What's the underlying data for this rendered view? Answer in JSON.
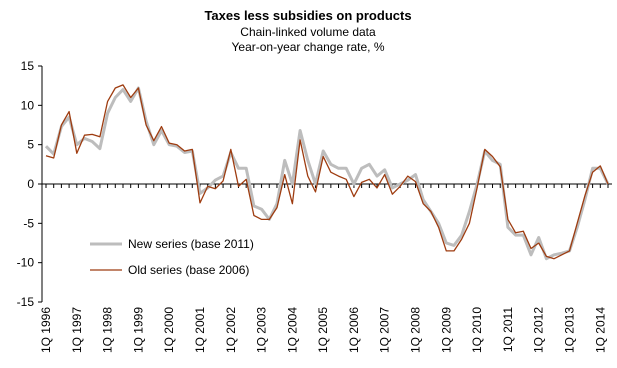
{
  "chart_data": {
    "type": "line",
    "title": "Taxes less subsidies on products",
    "subtitle_lines": [
      "Chain-linked volume data",
      "Year-on-year change rate, %"
    ],
    "ylim": [
      -15,
      15
    ],
    "y_ticks": [
      15,
      10,
      5,
      0,
      -5,
      -10,
      -15
    ],
    "x_tick_labels": [
      "1Q 1996",
      "1Q 1997",
      "1Q 1998",
      "1Q 1999",
      "1Q 2000",
      "1Q 2001",
      "1Q 2002",
      "1Q 2003",
      "1Q 2004",
      "1Q 2005",
      "1Q 2006",
      "1Q 2007",
      "1Q 2008",
      "1Q 2009",
      "1Q 2010",
      "1Q 2011",
      "1Q 2012",
      "1Q 2013",
      "1Q 2014"
    ],
    "grid": false,
    "legend_position": "lower-left",
    "series": [
      {
        "name": "New series (base 2011)",
        "color": "#bdbdbd",
        "values": [
          4.8,
          3.8,
          7.3,
          8.5,
          5.0,
          5.8,
          5.4,
          4.5,
          9.0,
          11.0,
          12.0,
          10.5,
          12.2,
          8.0,
          5.0,
          6.8,
          5.0,
          4.8,
          4.0,
          4.2,
          -1.2,
          -0.5,
          0.5,
          1.0,
          4.0,
          2.0,
          2.0,
          -2.8,
          -3.2,
          -4.5,
          -2.5,
          3.0,
          0.0,
          6.8,
          3.0,
          0.0,
          4.2,
          2.5,
          2.0,
          2.0,
          0.0,
          2.0,
          2.5,
          1.0,
          1.8,
          -0.5,
          0.0,
          0.5,
          1.2,
          -2.0,
          -3.5,
          -5.0,
          -7.5,
          -7.8,
          -6.5,
          -3.5,
          0.0,
          4.2,
          3.0,
          2.5,
          -5.5,
          -6.5,
          -6.5,
          -9.0,
          -6.8,
          -9.5,
          -9.0,
          -8.8,
          -8.5,
          -5.5,
          -2.0,
          2.0,
          2.0,
          0.0
        ]
      },
      {
        "name": "Old series (base 2006)",
        "color": "#9e3c10",
        "values": [
          3.6,
          3.3,
          7.5,
          9.2,
          3.9,
          6.2,
          6.3,
          6.0,
          10.5,
          12.2,
          12.6,
          11.0,
          12.2,
          7.5,
          5.5,
          7.3,
          5.2,
          5.0,
          4.2,
          4.4,
          -2.4,
          -0.3,
          -0.6,
          0.4,
          4.4,
          -0.3,
          0.6,
          -4.0,
          -4.5,
          -4.5,
          -3.0,
          1.2,
          -2.5,
          5.6,
          1.0,
          -1.0,
          3.5,
          1.5,
          1.0,
          0.6,
          -1.6,
          0.2,
          0.6,
          -0.5,
          1.2,
          -1.3,
          -0.3,
          1.0,
          0.3,
          -2.5,
          -3.5,
          -5.5,
          -8.5,
          -8.5,
          -7.0,
          -5.0,
          -0.5,
          4.4,
          3.5,
          2.2,
          -4.5,
          -6.2,
          -6.0,
          -8.2,
          -7.5,
          -9.2,
          -9.5,
          -9.0,
          -8.5,
          -5.0,
          -1.5,
          1.5,
          2.3,
          0.0
        ]
      }
    ],
    "zero_line_color": "#000000"
  }
}
